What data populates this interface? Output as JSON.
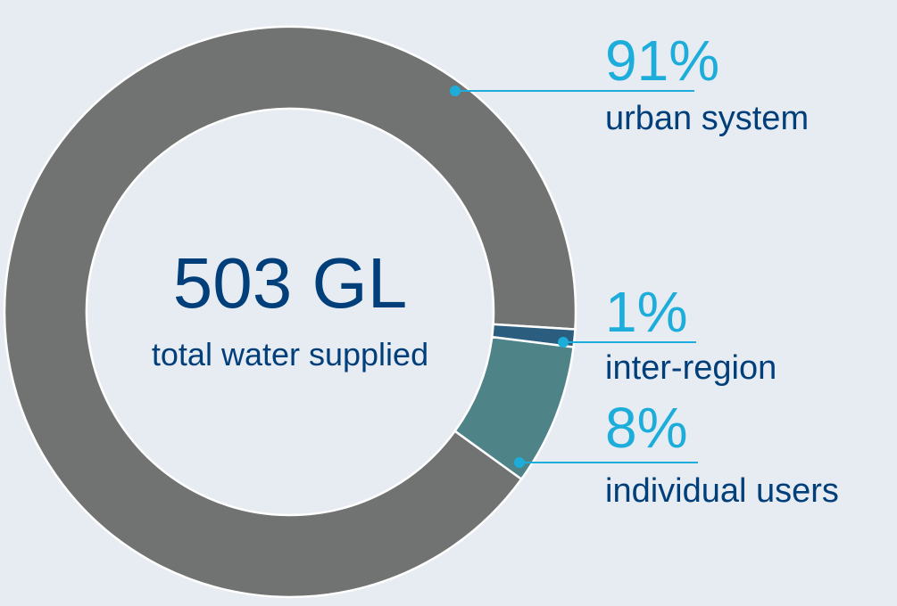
{
  "chart_data": {
    "type": "pie",
    "style": "donut",
    "center_value": "503 GL",
    "center_caption": "total water supplied",
    "slices": [
      {
        "label": "urban system",
        "percent_label": "91%",
        "value": 91,
        "color": "#717372"
      },
      {
        "label": "inter-region",
        "percent_label": "1%",
        "value": 1,
        "color": "#2b5e7e"
      },
      {
        "label": "individual users",
        "percent_label": "8%",
        "value": 8,
        "color": "#4e8388"
      }
    ],
    "leader_color": "#1cadda",
    "label_color": "#003f7a",
    "percent_color": "#1cadda",
    "background": "#e7ebf2"
  }
}
